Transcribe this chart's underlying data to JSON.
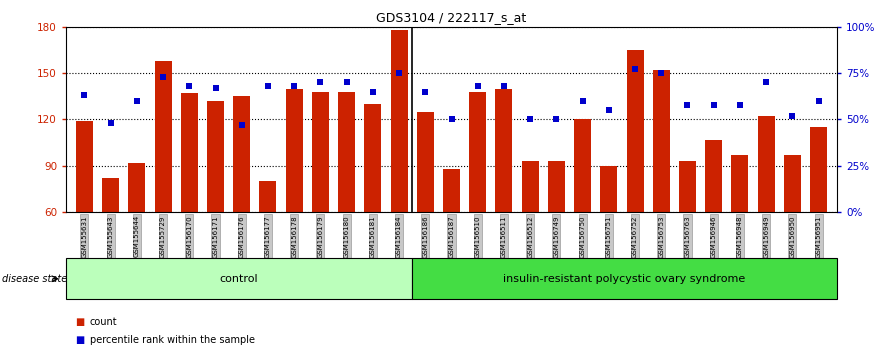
{
  "title": "GDS3104 / 222117_s_at",
  "samples": [
    "GSM155631",
    "GSM155643",
    "GSM155644",
    "GSM155729",
    "GSM156170",
    "GSM156171",
    "GSM156176",
    "GSM156177",
    "GSM156178",
    "GSM156179",
    "GSM156180",
    "GSM156181",
    "GSM156184",
    "GSM156186",
    "GSM156187",
    "GSM156510",
    "GSM156511",
    "GSM156512",
    "GSM156749",
    "GSM156750",
    "GSM156751",
    "GSM156752",
    "GSM156753",
    "GSM156763",
    "GSM156946",
    "GSM156948",
    "GSM156949",
    "GSM156950",
    "GSM156951"
  ],
  "bar_values": [
    119,
    82,
    92,
    158,
    137,
    132,
    135,
    80,
    140,
    138,
    138,
    130,
    178,
    125,
    88,
    138,
    140,
    93,
    93,
    120,
    90,
    165,
    152,
    93,
    107,
    97,
    122,
    97,
    115
  ],
  "percentile_values": [
    63,
    48,
    60,
    73,
    68,
    67,
    47,
    68,
    68,
    70,
    70,
    65,
    75,
    65,
    50,
    68,
    68,
    50,
    50,
    60,
    55,
    77,
    75,
    58,
    58,
    58,
    70,
    52,
    60
  ],
  "n_control": 13,
  "bar_color": "#cc2200",
  "dot_color": "#0000cc",
  "ylim_left": [
    60,
    180
  ],
  "ylim_right": [
    0,
    100
  ],
  "yticks_left": [
    60,
    90,
    120,
    150,
    180
  ],
  "yticks_right": [
    0,
    25,
    50,
    75,
    100
  ],
  "ytick_labels_right": [
    "0%",
    "25%",
    "50%",
    "75%",
    "100%"
  ],
  "group_labels": [
    "control",
    "insulin-resistant polycystic ovary syndrome"
  ],
  "disease_state_label": "disease state",
  "legend_bar_label": "count",
  "legend_dot_label": "percentile rank within the sample",
  "bg_color": "#ffffff",
  "axis_color_left": "#cc2200",
  "axis_color_right": "#0000cc",
  "bar_width": 0.65,
  "tick_bg_color": "#c8c8c8",
  "ctrl_color": "#bbffbb",
  "dis_color": "#44dd44",
  "ymin": 60,
  "ymax": 180
}
